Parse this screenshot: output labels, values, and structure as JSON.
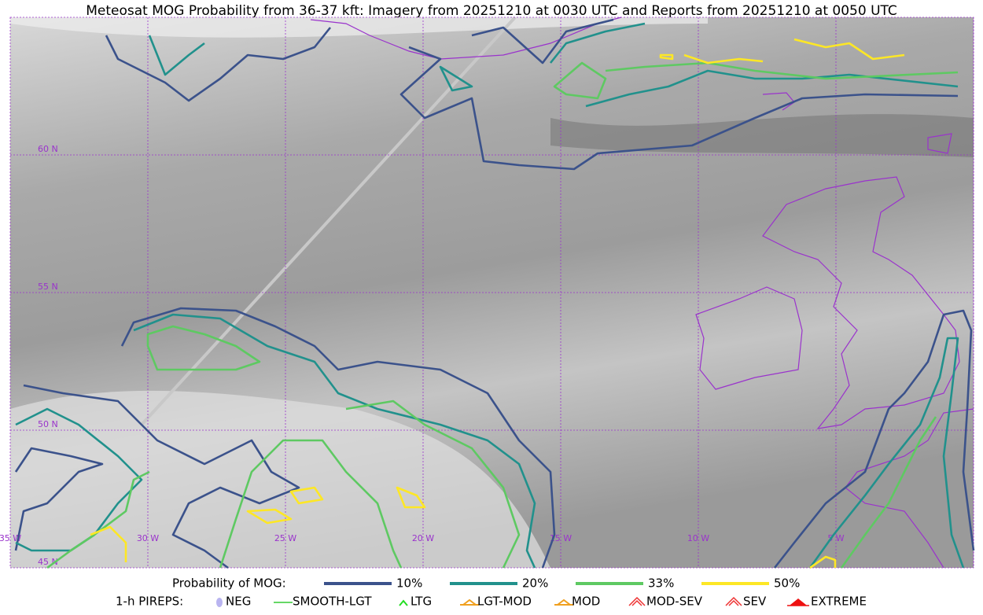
{
  "title": "Meteosat MOG Probability from 36-37 kft: Imagery from 20251210 at 0030 UTC and Reports from 20251210 at 0050 UTC",
  "grid_labels": {
    "lat": [
      "60 N",
      "55 N",
      "50 N",
      "45 N"
    ],
    "lon": [
      "35 W",
      "30 W",
      "25 W",
      "20 W",
      "15 W",
      "10 W",
      "5 W"
    ]
  },
  "legend": {
    "probability": {
      "label": "Probability of MOG:",
      "levels": [
        {
          "label": "10%",
          "color": "#3b528b"
        },
        {
          "label": "20%",
          "color": "#21918c"
        },
        {
          "label": "33%",
          "color": "#5ec962"
        },
        {
          "label": "50%",
          "color": "#fde725"
        }
      ]
    },
    "pireps": {
      "label": "1-h PIREPS:",
      "items": [
        {
          "label": "NEG",
          "color": "#b9b4f0"
        },
        {
          "label": "SMOOTH-LGT",
          "color": "#33cc33"
        },
        {
          "label": "LTG",
          "color": "#22dd22"
        },
        {
          "label": "LGT-MOD",
          "color": "#f0a020"
        },
        {
          "label": "MOD",
          "color": "#f0a020"
        },
        {
          "label": "MOD-SEV",
          "color": "#ee3333"
        },
        {
          "label": "SEV",
          "color": "#ee3333"
        },
        {
          "label": "EXTREME",
          "color": "#ee1111"
        }
      ]
    }
  }
}
